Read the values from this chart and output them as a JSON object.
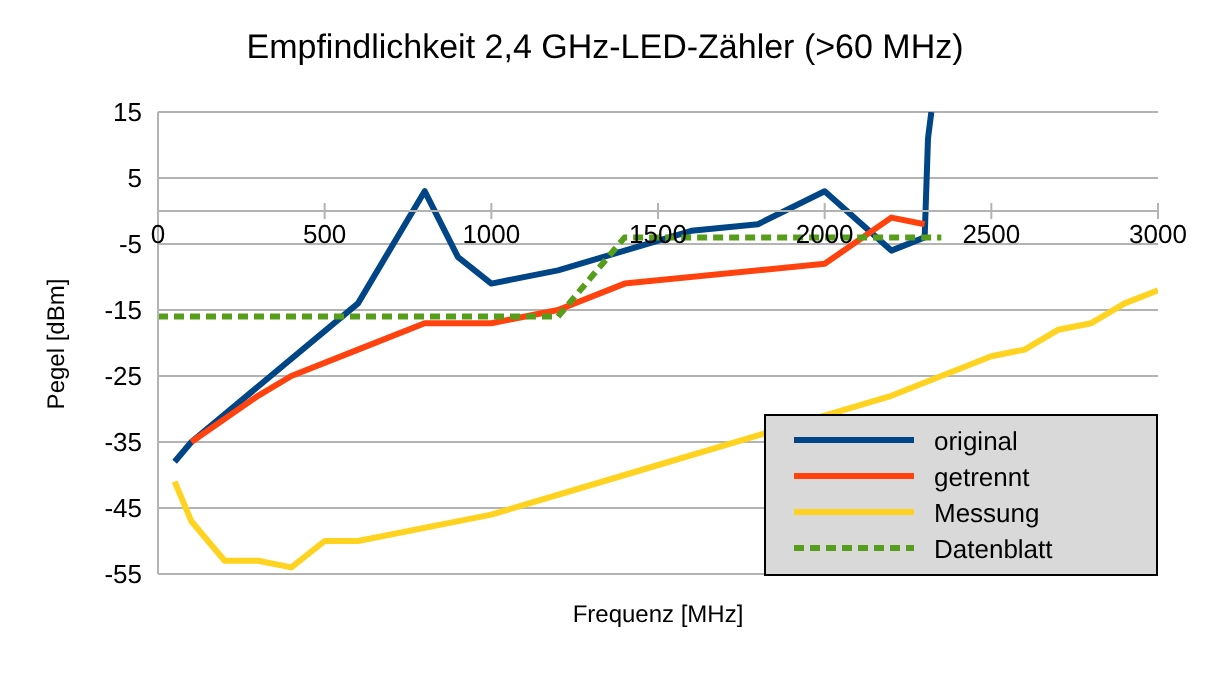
{
  "chart_data": {
    "type": "line",
    "title": "Empfindlichkeit 2,4 GHz-LED-Zähler (>60 MHz)",
    "xlabel": "Frequenz [MHz]",
    "ylabel": "Pegel [dBm]",
    "xlim": [
      0,
      3000
    ],
    "xticks": [
      0,
      500,
      1000,
      1500,
      2000,
      2500,
      3000
    ],
    "ylim": [
      -55,
      15
    ],
    "yticks": [
      -55,
      -45,
      -35,
      -25,
      -15,
      -5,
      5,
      15
    ],
    "grid": "y",
    "legend": "bottom right",
    "marker": "none",
    "series": [
      {
        "name": "original",
        "color": "#004586",
        "x": [
          50,
          100,
          600,
          800,
          900,
          1000,
          1200,
          1400,
          1600,
          1800,
          2000,
          2200,
          2300,
          2310,
          2320
        ],
        "values": [
          -38,
          -35,
          -14,
          3,
          -7,
          -11,
          -9,
          -6,
          -3,
          -2,
          3,
          -6,
          -4,
          11,
          15
        ]
      },
      {
        "name": "getrennt",
        "color": "#ff420e",
        "x": [
          100,
          300,
          400,
          600,
          800,
          1000,
          1200,
          1400,
          2000,
          2200,
          2300
        ],
        "values": [
          -35,
          -28,
          -25,
          -21,
          -17,
          -17,
          -15,
          -11,
          -8,
          -1,
          -2
        ]
      },
      {
        "name": "Messung",
        "color": "#ffd320",
        "x": [
          50,
          100,
          200,
          300,
          400,
          500,
          600,
          1000,
          1400,
          1800,
          2200,
          2500,
          2600,
          2700,
          2800,
          2900,
          3000
        ],
        "values": [
          -41,
          -47,
          -53,
          -53,
          -54,
          -50,
          -50,
          -46,
          -40,
          null,
          -28,
          -22,
          -21,
          -18,
          -17,
          -14,
          -12
        ]
      },
      {
        "name": "Datenblatt",
        "color": "#579d1c",
        "line_style": "dashed",
        "x": [
          0,
          1200,
          1400,
          2350
        ],
        "values": [
          -16,
          -16,
          -4,
          -4
        ]
      }
    ]
  }
}
